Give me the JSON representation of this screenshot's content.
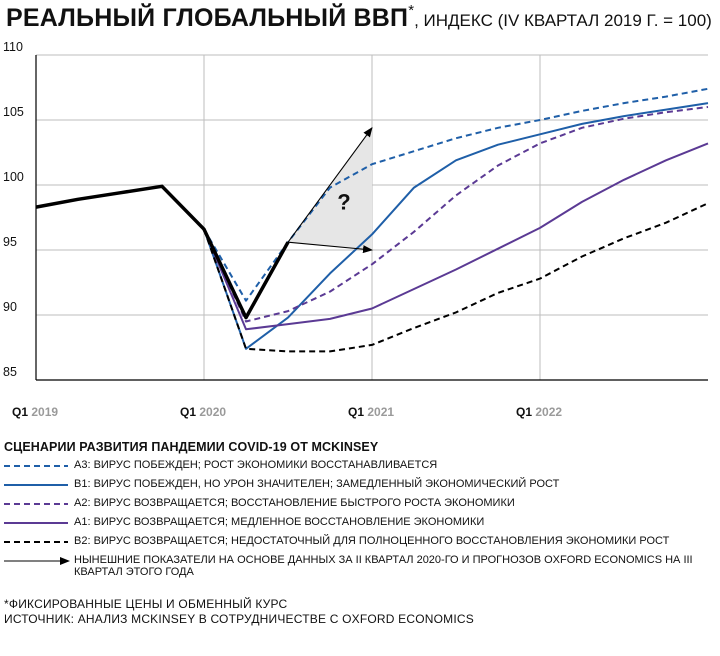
{
  "title": {
    "main": "РЕАЛЬНЫЙ ГЛОБАЛЬНЫЙ ВВП",
    "star": "*",
    "sub": ", ИНДЕКС (IV КВАРТАЛ 2019 Г. = 100)"
  },
  "colors": {
    "axis": "#000000",
    "grid": "#bdbdbd",
    "historical": "#000000",
    "a3": "#1f5fa8",
    "b1": "#1f5fa8",
    "a2": "#5b3a94",
    "a1": "#5b3a94",
    "b2": "#000000",
    "uncertainty_fill": "#e6e6e6"
  },
  "chart_data": {
    "type": "line",
    "ylim": [
      85,
      110
    ],
    "yticks": [
      "85",
      "90",
      "95",
      "100",
      "105",
      "110"
    ],
    "x_quarters": [
      "2019Q1",
      "2019Q2",
      "2019Q3",
      "2019Q4",
      "2020Q1",
      "2020Q2",
      "2020Q3",
      "2020Q4",
      "2021Q1",
      "2021Q2",
      "2021Q3",
      "2021Q4",
      "2022Q1",
      "2022Q2",
      "2022Q3",
      "2022Q4",
      "2023Q1"
    ],
    "xticks": [
      {
        "index": 0,
        "q": "Q1",
        "year": "2019"
      },
      {
        "index": 4,
        "q": "Q1",
        "year": "2020"
      },
      {
        "index": 8,
        "q": "Q1",
        "year": "2021"
      },
      {
        "index": 12,
        "q": "Q1",
        "year": "2022"
      }
    ],
    "annotation": "?",
    "historical": {
      "x": [
        0,
        1,
        2,
        3,
        4,
        5,
        6
      ],
      "values": [
        98.3,
        98.9,
        99.4,
        99.9,
        96.6,
        89.8,
        95.6
      ]
    },
    "series": [
      {
        "id": "a3",
        "style": "dashed",
        "x": [
          4,
          5,
          6,
          7,
          8,
          9,
          10,
          11,
          12,
          13,
          14,
          15,
          16
        ],
        "values": [
          96.6,
          91.1,
          95.6,
          99.8,
          101.6,
          102.6,
          103.6,
          104.4,
          105.0,
          105.7,
          106.3,
          106.8,
          107.4
        ]
      },
      {
        "id": "b1",
        "style": "solid",
        "x": [
          4,
          5,
          6,
          7,
          8,
          9,
          10,
          11,
          12,
          13,
          14,
          15,
          16
        ],
        "values": [
          96.6,
          87.4,
          89.8,
          93.2,
          96.2,
          99.8,
          101.9,
          103.1,
          103.9,
          104.7,
          105.3,
          105.8,
          106.3
        ]
      },
      {
        "id": "a2",
        "style": "dashed",
        "x": [
          4,
          5,
          6,
          7,
          8,
          9,
          10,
          11,
          12,
          13,
          14,
          15,
          16
        ],
        "values": [
          96.6,
          89.5,
          90.3,
          91.8,
          93.9,
          96.4,
          99.2,
          101.5,
          103.2,
          104.4,
          105.1,
          105.6,
          106.0
        ]
      },
      {
        "id": "a1",
        "style": "solid",
        "x": [
          4,
          5,
          6,
          7,
          8,
          9,
          10,
          11,
          12,
          13,
          14,
          15,
          16
        ],
        "values": [
          96.6,
          88.9,
          89.3,
          89.7,
          90.5,
          92.0,
          93.5,
          95.1,
          96.7,
          98.7,
          100.4,
          101.9,
          103.2
        ]
      },
      {
        "id": "b2",
        "style": "dashed",
        "x": [
          4,
          5,
          6,
          7,
          8,
          9,
          10,
          11,
          12,
          13,
          14,
          15,
          16
        ],
        "values": [
          96.6,
          87.4,
          87.2,
          87.2,
          87.7,
          89.0,
          90.2,
          91.7,
          92.8,
          94.5,
          95.9,
          97.1,
          98.6
        ]
      }
    ],
    "arrows": [
      {
        "from": [
          6,
          95.6
        ],
        "to": [
          8,
          104.4
        ]
      },
      {
        "from": [
          6,
          95.6
        ],
        "to": [
          8,
          95.0
        ]
      }
    ]
  },
  "legend": {
    "heading": "СЦЕНАРИИ РАЗВИТИЯ ПАНДЕМИИ COVID-19 ОТ MCKINSEY",
    "items": [
      {
        "id": "a3",
        "label": "A3: Вирус побежден; рост экономики восстанавливается"
      },
      {
        "id": "b1",
        "label": "B1: Вирус побежден, но урон значителен; замедленный экономический рост"
      },
      {
        "id": "a2",
        "label": "A2: Вирус возвращается; восстановление быстрого роста экономики"
      },
      {
        "id": "a1",
        "label": "A1: Вирус возвращается; медленное восстановление экономики"
      },
      {
        "id": "b2",
        "label": "B2: Вирус возвращается; недостаточный для полноценного восстановления экономики рост"
      },
      {
        "id": "arrow",
        "label": "Нынешние показатели на основе данных за II квартал 2020-го и прогнозов Oxford Economics на III квартал этого года"
      }
    ]
  },
  "footnotes": {
    "line1": "*ФИКСИРОВАННЫЕ ЦЕНЫ И ОБМЕННЫЙ КУРС",
    "line2": "ИСТОЧНИК: АНАЛИЗ MCKINSEY В СОТРУДНИЧЕСТВЕ С OXFORD ECONOMICS"
  }
}
